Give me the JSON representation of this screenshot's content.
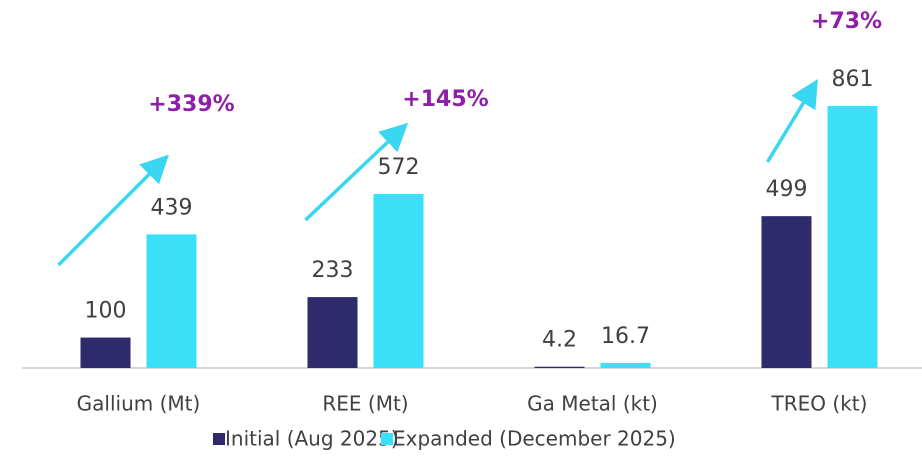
{
  "chart_data": {
    "type": "bar",
    "categories": [
      "Gallium (Mt)",
      "REE (Mt)",
      "Ga Metal (kt)",
      "TREO (kt)"
    ],
    "series": [
      {
        "name": "Initial (Aug 2025)",
        "color": "#2e2a6b",
        "values": [
          100,
          233,
          4.2,
          499
        ]
      },
      {
        "name": "Expanded (December 2025)",
        "color": "#3ae0f8",
        "values": [
          439,
          572,
          16.7,
          861
        ]
      }
    ],
    "annotations": [
      "+339%",
      "+145%",
      null,
      "+73%"
    ],
    "annotation_color": "#8e1fa8",
    "legend": "bottom"
  }
}
